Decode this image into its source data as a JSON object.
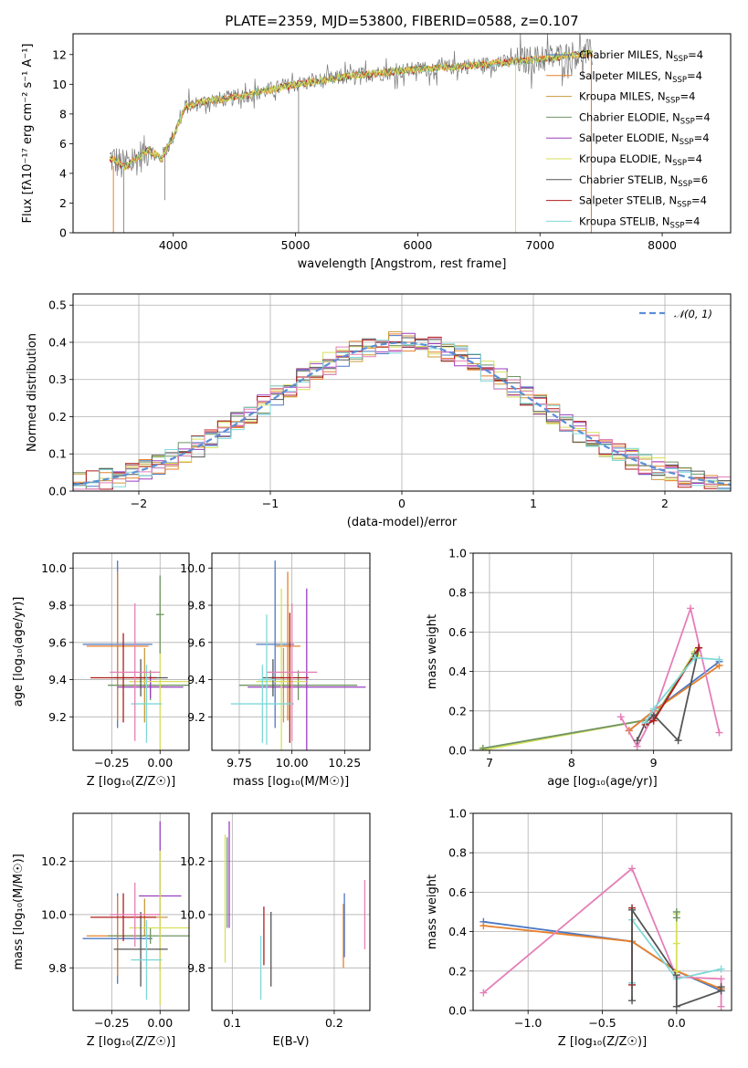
{
  "colors": {
    "chabrier_miles": "#4c78c4",
    "salpeter_miles": "#e8802a",
    "kroupa_miles": "#c99a3a",
    "chabrier_elodie": "#6f9463",
    "salpeter_elodie": "#9a3fbf",
    "kroupa_elodie": "#d6e05a",
    "chabrier_stelib": "#555555",
    "salpeter_stelib": "#b01c1c",
    "kroupa_stelib": "#7fd8d8",
    "pink": "#e57fb8",
    "normal_fit": "#5b8fd6"
  },
  "chart_data": [
    {
      "id": "spectrum",
      "type": "line",
      "title": "PLATE=2359, MJD=53800, FIBERID=0588, z=0.107",
      "xlabel": "wavelength [Angstrom, rest frame]",
      "ylabel": "Flux [fλ10⁻¹⁷ erg cm⁻² s⁻¹ A⁻¹]",
      "xlim": [
        3180,
        8560
      ],
      "ylim": [
        0,
        13.4
      ],
      "xticks": [
        "4000",
        "5000",
        "6000",
        "7000",
        "8000"
      ],
      "yticks": [
        "0",
        "2",
        "4",
        "6",
        "8",
        "10",
        "12"
      ],
      "continuum": {
        "x": [
          3500,
          3600,
          3700,
          3800,
          3900,
          4000,
          4100,
          4300,
          4500,
          5000,
          5500,
          6000,
          6500,
          7000,
          7300,
          7500
        ],
        "y": [
          5.0,
          4.4,
          5.0,
          5.6,
          5.0,
          6.5,
          8.5,
          8.9,
          9.1,
          10.0,
          10.6,
          11.0,
          11.3,
          11.7,
          12.0,
          12.1
        ]
      },
      "legend": [
        {
          "label": "Chabrier MILES, N",
          "sub": "SSP",
          "tail": "=4",
          "color_key": "chabrier_miles"
        },
        {
          "label": "Salpeter MILES, N",
          "sub": "SSP",
          "tail": "=4",
          "color_key": "salpeter_miles"
        },
        {
          "label": "Kroupa MILES, N",
          "sub": "SSP",
          "tail": "=4",
          "color_key": "kroupa_miles"
        },
        {
          "label": "Chabrier ELODIE, N",
          "sub": "SSP",
          "tail": "=4",
          "color_key": "chabrier_elodie"
        },
        {
          "label": "Salpeter ELODIE, N",
          "sub": "SSP",
          "tail": "=4",
          "color_key": "salpeter_elodie"
        },
        {
          "label": "Kroupa ELODIE, N",
          "sub": "SSP",
          "tail": "=4",
          "color_key": "kroupa_elodie"
        },
        {
          "label": "Chabrier STELIB, N",
          "sub": "SSP",
          "tail": "=6",
          "color_key": "chabrier_stelib"
        },
        {
          "label": "Salpeter STELIB, N",
          "sub": "SSP",
          "tail": "=4",
          "color_key": "salpeter_stelib"
        },
        {
          "label": "Kroupa STELIB, N",
          "sub": "SSP",
          "tail": "=4",
          "color_key": "kroupa_stelib"
        }
      ]
    },
    {
      "id": "residuals",
      "type": "histogram",
      "xlabel": "(data-model)/error",
      "ylabel": "Normed distribution",
      "xlim": [
        -2.5,
        2.5
      ],
      "ylim": [
        0,
        0.53
      ],
      "xticks": [
        "−2",
        "−1",
        "0",
        "1",
        "2"
      ],
      "yticks": [
        "0.0",
        "0.1",
        "0.2",
        "0.3",
        "0.4",
        "0.5"
      ],
      "bin_width": 0.1,
      "legend": [
        {
          "label": "𝒩(0, 1)",
          "color_key": "normal_fit",
          "style": "dashed"
        }
      ]
    },
    {
      "id": "age_vs_Z",
      "type": "errorbar",
      "xlabel": "Z [log₁₀(Z/Z☉)]",
      "ylabel": "age  [log₁₀(age/yr)]",
      "xlim": [
        -0.45,
        0.15
      ],
      "ylim": [
        9.02,
        10.08
      ],
      "xticks": [
        "−0.25",
        "0.00"
      ],
      "yticks": [
        "9.2",
        "9.4",
        "9.6",
        "9.8",
        "10.0"
      ],
      "points": [
        {
          "color_key": "chabrier_miles",
          "x": -0.22,
          "xerr": 0.18,
          "y": 9.59,
          "yerr": 0.45
        },
        {
          "color_key": "salpeter_miles",
          "x": -0.22,
          "xerr": 0.16,
          "y": 9.58,
          "yerr": 0.4
        },
        {
          "color_key": "kroupa_miles",
          "x": -0.08,
          "xerr": 0.12,
          "y": 9.37,
          "yerr": 0.2
        },
        {
          "color_key": "chabrier_elodie",
          "x": -0.05,
          "xerr": 0.22,
          "y": 9.37,
          "yerr": 0.08
        },
        {
          "color_key": "salpeter_elodie",
          "x": -0.05,
          "xerr": 0.17,
          "y": 9.36,
          "yerr": 0.06
        },
        {
          "color_key": "kroupa_elodie",
          "x": 0.0,
          "xerr": 0.16,
          "y": 9.39,
          "yerr": 0.5
        },
        {
          "color_key": "chabrier_stelib",
          "x": -0.1,
          "xerr": 0.14,
          "y": 9.41,
          "yerr": 0.1
        },
        {
          "color_key": "salpeter_stelib",
          "x": -0.19,
          "xerr": 0.17,
          "y": 9.41,
          "yerr": 0.24
        },
        {
          "color_key": "kroupa_stelib",
          "x": -0.07,
          "xerr": 0.08,
          "y": 9.27,
          "yerr": 0.21
        },
        {
          "color_key": "pink",
          "x": -0.13,
          "xerr": 0.13,
          "y": 9.44,
          "yerr": 0.37
        },
        {
          "color_key": "chabrier_elodie",
          "x": 0.0,
          "xerr": 0.02,
          "y": 9.75,
          "yerr": 0.21
        }
      ]
    },
    {
      "id": "age_vs_mass",
      "type": "errorbar",
      "xlabel": "mass [log₁₀(M/M☉)]",
      "ylabel": "",
      "xlim": [
        9.62,
        10.37
      ],
      "ylim": [
        9.02,
        10.08
      ],
      "xticks": [
        "9.75",
        "10.00",
        "10.25"
      ],
      "yticks": [
        "9.2",
        "9.4",
        "9.6",
        "9.8",
        "10.0"
      ],
      "points": [
        {
          "color_key": "chabrier_miles",
          "x": 9.92,
          "xerr": 0.09,
          "y": 9.59,
          "yerr": 0.45
        },
        {
          "color_key": "salpeter_miles",
          "x": 9.98,
          "xerr": 0.06,
          "y": 9.58,
          "yerr": 0.4
        },
        {
          "color_key": "kroupa_miles",
          "x": 9.96,
          "xerr": 0.09,
          "y": 9.37,
          "yerr": 0.2
        },
        {
          "color_key": "chabrier_elodie",
          "x": 10.03,
          "xerr": 0.28,
          "y": 9.37,
          "yerr": 0.08
        },
        {
          "color_key": "salpeter_elodie",
          "x": 10.07,
          "xerr": 0.28,
          "y": 9.36,
          "yerr": 0.53
        },
        {
          "color_key": "kroupa_elodie",
          "x": 9.95,
          "xerr": 0.12,
          "y": 9.39,
          "yerr": 0.5
        },
        {
          "color_key": "chabrier_stelib",
          "x": 9.91,
          "xerr": 0.05,
          "y": 9.41,
          "yerr": 0.1
        },
        {
          "color_key": "salpeter_stelib",
          "x": 9.99,
          "xerr": 0.09,
          "y": 9.41,
          "yerr": 0.35
        },
        {
          "color_key": "kroupa_stelib",
          "x": 9.86,
          "xerr": 0.15,
          "y": 9.27,
          "yerr": 0.21
        },
        {
          "color_key": "pink",
          "x": 10.0,
          "xerr": 0.12,
          "y": 9.44,
          "yerr": 0.37
        },
        {
          "color_key": "kroupa_stelib",
          "x": 9.88,
          "xerr": 0.04,
          "y": 9.4,
          "yerr": 0.35
        }
      ]
    },
    {
      "id": "massweight_vs_age",
      "type": "line",
      "xlabel": "age  [log₁₀(age/yr)]",
      "ylabel": "mass weight",
      "xlim": [
        6.8,
        9.95
      ],
      "ylim": [
        0,
        1.0
      ],
      "xticks": [
        "7",
        "8",
        "9"
      ],
      "yticks": [
        "0.0",
        "0.2",
        "0.4",
        "0.6",
        "0.8",
        "1.0"
      ],
      "series": [
        {
          "color_key": "kroupa_elodie",
          "x": [
            6.9,
            9.0,
            9.5,
            9.55
          ],
          "y": [
            0.0,
            0.16,
            0.5,
            0.48
          ]
        },
        {
          "color_key": "chabrier_elodie",
          "x": [
            6.92,
            9.0,
            9.5
          ],
          "y": [
            0.01,
            0.16,
            0.49
          ]
        },
        {
          "color_key": "chabrier_miles",
          "x": [
            8.7,
            9.0,
            9.8
          ],
          "y": [
            0.1,
            0.2,
            0.45
          ]
        },
        {
          "color_key": "salpeter_miles",
          "x": [
            8.7,
            9.0,
            9.8
          ],
          "y": [
            0.1,
            0.2,
            0.43
          ]
        },
        {
          "color_key": "pink",
          "x": [
            8.6,
            8.8,
            9.0,
            9.45,
            9.8
          ],
          "y": [
            0.17,
            0.02,
            0.18,
            0.72,
            0.09
          ]
        },
        {
          "color_key": "chabrier_stelib",
          "x": [
            8.8,
            8.9,
            9.0,
            9.3,
            9.55
          ],
          "y": [
            0.05,
            0.14,
            0.18,
            0.05,
            0.52
          ]
        },
        {
          "color_key": "salpeter_stelib",
          "x": [
            8.9,
            9.0,
            9.55
          ],
          "y": [
            0.13,
            0.15,
            0.52
          ]
        },
        {
          "color_key": "kroupa_stelib",
          "x": [
            8.9,
            9.0,
            9.5,
            9.8
          ],
          "y": [
            0.14,
            0.21,
            0.47,
            0.46
          ]
        }
      ]
    },
    {
      "id": "mass_vs_Z",
      "type": "errorbar",
      "xlabel": "Z [log₁₀(Z/Z☉)]",
      "ylabel": "mass [log₁₀(M/M☉)]",
      "xlim": [
        -0.45,
        0.15
      ],
      "ylim": [
        9.64,
        10.38
      ],
      "xticks": [
        "−0.25",
        "0.00"
      ],
      "yticks": [
        "9.8",
        "10.0",
        "10.2"
      ],
      "points": [
        {
          "color_key": "chabrier_miles",
          "x": -0.22,
          "xerr": 0.18,
          "y": 9.91,
          "yerr": 0.17
        },
        {
          "color_key": "salpeter_miles",
          "x": -0.22,
          "xerr": 0.16,
          "y": 9.92,
          "yerr": 0.15
        },
        {
          "color_key": "kroupa_miles",
          "x": -0.08,
          "xerr": 0.12,
          "y": 9.99,
          "yerr": 0.07
        },
        {
          "color_key": "chabrier_elodie",
          "x": -0.05,
          "xerr": 0.22,
          "y": 9.92,
          "yerr": 0.03
        },
        {
          "color_key": "salpeter_elodie",
          "x": 0.0,
          "xerr": 0.11,
          "y": 10.07,
          "yerr": 0.28
        },
        {
          "color_key": "kroupa_elodie",
          "x": 0.0,
          "xerr": 0.16,
          "y": 9.95,
          "yerr": 0.29
        },
        {
          "color_key": "chabrier_stelib",
          "x": -0.1,
          "xerr": 0.14,
          "y": 9.87,
          "yerr": 0.14
        },
        {
          "color_key": "salpeter_stelib",
          "x": -0.19,
          "xerr": 0.17,
          "y": 9.99,
          "yerr": 0.09
        },
        {
          "color_key": "kroupa_stelib",
          "x": -0.07,
          "xerr": 0.08,
          "y": 9.83,
          "yerr": 0.15
        },
        {
          "color_key": "pink",
          "x": -0.13,
          "xerr": 0.13,
          "y": 10.0,
          "yerr": 0.12
        }
      ]
    },
    {
      "id": "mass_vs_ebv",
      "type": "errorbar",
      "xlabel": "E(B-V)",
      "ylabel": "",
      "xlim": [
        0.08,
        0.235
      ],
      "ylim": [
        9.64,
        10.38
      ],
      "xticks": [
        "0.1",
        "0.2"
      ],
      "yticks": [
        "9.8",
        "10.0",
        "10.2"
      ],
      "points": [
        {
          "color_key": "kroupa_elodie",
          "x": 0.093,
          "xerr": 0.0,
          "y": 10.06,
          "yerr": 0.24
        },
        {
          "color_key": "chabrier_elodie",
          "x": 0.095,
          "xerr": 0.0,
          "y": 10.12,
          "yerr": 0.17
        },
        {
          "color_key": "salpeter_elodie",
          "x": 0.097,
          "xerr": 0.0,
          "y": 10.15,
          "yerr": 0.2
        },
        {
          "color_key": "kroupa_stelib",
          "x": 0.128,
          "xerr": 0.0,
          "y": 9.8,
          "yerr": 0.12
        },
        {
          "color_key": "salpeter_stelib",
          "x": 0.131,
          "xerr": 0.0,
          "y": 9.92,
          "yerr": 0.11
        },
        {
          "color_key": "chabrier_stelib",
          "x": 0.138,
          "xerr": 0.0,
          "y": 9.87,
          "yerr": 0.14
        },
        {
          "color_key": "salpeter_miles",
          "x": 0.209,
          "xerr": 0.0,
          "y": 9.92,
          "yerr": 0.12
        },
        {
          "color_key": "chabrier_miles",
          "x": 0.21,
          "xerr": 0.0,
          "y": 9.96,
          "yerr": 0.12
        },
        {
          "color_key": "pink",
          "x": 0.23,
          "xerr": 0.0,
          "y": 10.0,
          "yerr": 0.13
        }
      ]
    },
    {
      "id": "massweight_vs_Z",
      "type": "line",
      "xlabel": "Z [log₁₀(Z/Z☉)]",
      "ylabel": "mass weight",
      "xlim": [
        -1.37,
        0.37
      ],
      "ylim": [
        0,
        1.0
      ],
      "xticks": [
        "−1.0",
        "−0.5",
        "0.0"
      ],
      "yticks": [
        "0.0",
        "0.2",
        "0.4",
        "0.6",
        "0.8",
        "1.0"
      ],
      "series": [
        {
          "color_key": "chabrier_miles",
          "x": [
            -1.3,
            -0.3,
            0.0,
            0.3
          ],
          "y": [
            0.45,
            0.35,
            0.2,
            0.1
          ]
        },
        {
          "color_key": "salpeter_miles",
          "x": [
            -1.3,
            -0.3,
            0.0,
            0.3
          ],
          "y": [
            0.43,
            0.35,
            0.2,
            0.11
          ]
        },
        {
          "color_key": "pink",
          "x": [
            -1.3,
            -0.3,
            0.0,
            0.3,
            0.3
          ],
          "y": [
            0.09,
            0.72,
            0.17,
            0.16,
            0.02
          ]
        },
        {
          "color_key": "kroupa_stelib",
          "x": [
            -0.3,
            -0.3,
            0.0,
            0.3
          ],
          "y": [
            0.14,
            0.46,
            0.16,
            0.21
          ]
        },
        {
          "color_key": "salpeter_stelib",
          "x": [
            -0.3,
            -0.3
          ],
          "y": [
            0.13,
            0.52
          ]
        },
        {
          "color_key": "chabrier_stelib",
          "x": [
            -0.3,
            -0.3,
            0.0,
            0.0,
            0.3,
            0.3
          ],
          "y": [
            0.05,
            0.51,
            0.18,
            0.02,
            0.1,
            0.12
          ]
        },
        {
          "color_key": "kroupa_elodie",
          "x": [
            0.0,
            0.0,
            0.0
          ],
          "y": [
            0.49,
            0.34,
            0.2
          ]
        },
        {
          "color_key": "chabrier_elodie",
          "x": [
            0.0,
            0.0
          ],
          "y": [
            0.5,
            0.47
          ]
        }
      ]
    }
  ]
}
